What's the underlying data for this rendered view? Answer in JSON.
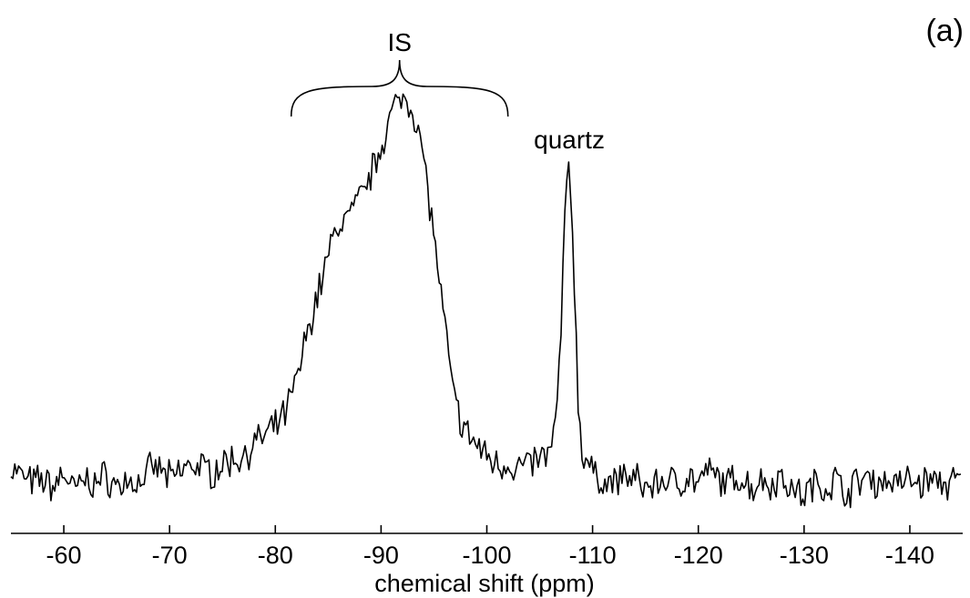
{
  "chart_data": {
    "type": "line",
    "title": "",
    "panel_label": "(a)",
    "xlabel": "chemical shift (ppm)",
    "ylabel": "",
    "xlim": [
      -55,
      -145
    ],
    "x_reversed": true,
    "y_ticks_shown": false,
    "grid": false,
    "legend": "none",
    "line_color": "#000000",
    "x_ticks": [
      -60,
      -70,
      -80,
      -90,
      -100,
      -110,
      -120,
      -130,
      -140
    ],
    "x_tick_labels": [
      "-60",
      "-70",
      "-80",
      "-90",
      "-100",
      "-110",
      "-120",
      "-130",
      "-140"
    ],
    "annotations": [
      {
        "text": "IS",
        "kind": "brace",
        "x_from": -81.5,
        "x_to": -102
      },
      {
        "text": "quartz",
        "kind": "label",
        "x": -107.8
      }
    ],
    "series": [
      {
        "x": [
          -55,
          -56,
          -57,
          -58,
          -59,
          -60,
          -61,
          -62,
          -63,
          -64,
          -65,
          -66,
          -67,
          -68,
          -69,
          -70,
          -71,
          -72,
          -73,
          -74,
          -75,
          -76,
          -77,
          -78,
          -79,
          -80,
          -81,
          -82,
          -83,
          -84,
          -85,
          -86,
          -87,
          -88,
          -89,
          -90,
          -91,
          -92,
          -92.5,
          -93,
          -93.5,
          -94,
          -95,
          -96,
          -97,
          -98,
          -99,
          -100,
          -101,
          -102,
          -103,
          -104,
          -105,
          -106,
          -106.5,
          -107,
          -107.4,
          -107.8,
          -108.2,
          -108.6,
          -109,
          -109.5,
          -110,
          -111,
          -112,
          -113,
          -114,
          -115,
          -116,
          -117,
          -118,
          -119,
          -120,
          -121,
          -122,
          -123,
          -124,
          -125,
          -126,
          -127,
          -128,
          -129,
          -130,
          -131,
          -132,
          -133,
          -134,
          -135,
          -136,
          -137,
          -138,
          -139,
          -140,
          -141,
          -142,
          -143,
          -144,
          -145
        ],
        "y": [
          0.06,
          0.04,
          0.02,
          0.03,
          0.01,
          0.05,
          0.0,
          0.03,
          0.02,
          0.04,
          0.01,
          0.03,
          0.02,
          0.05,
          0.06,
          0.03,
          0.05,
          0.07,
          0.06,
          0.05,
          0.07,
          0.08,
          0.09,
          0.12,
          0.14,
          0.16,
          0.2,
          0.28,
          0.4,
          0.5,
          0.6,
          0.68,
          0.7,
          0.74,
          0.8,
          0.88,
          0.96,
          1.0,
          1.0,
          0.97,
          0.92,
          0.85,
          0.65,
          0.42,
          0.22,
          0.15,
          0.12,
          0.09,
          0.07,
          0.07,
          0.06,
          0.07,
          0.08,
          0.1,
          0.16,
          0.4,
          0.7,
          0.85,
          0.6,
          0.25,
          0.1,
          0.08,
          0.04,
          0.03,
          0.02,
          0.04,
          0.03,
          0.01,
          0.02,
          0.03,
          0.02,
          0.04,
          0.02,
          0.05,
          0.03,
          0.02,
          0.04,
          0.01,
          0.03,
          0.02,
          0.04,
          0.0,
          -0.01,
          0.02,
          0.01,
          0.03,
          0.0,
          0.02,
          0.04,
          0.02,
          0.03,
          0.02,
          0.03,
          0.02,
          0.03,
          0.02,
          0.02,
          0.03
        ]
      }
    ]
  }
}
